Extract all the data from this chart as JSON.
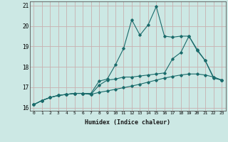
{
  "xlabel": "Humidex (Indice chaleur)",
  "bg_color": "#cce8e4",
  "grid_color": "#c8b0b0",
  "line_color": "#1a6b6b",
  "xlim": [
    -0.5,
    23.5
  ],
  "ylim": [
    15.85,
    21.2
  ],
  "yticks": [
    16,
    17,
    18,
    19,
    20,
    21
  ],
  "xticks": [
    0,
    1,
    2,
    3,
    4,
    5,
    6,
    7,
    8,
    9,
    10,
    11,
    12,
    13,
    14,
    15,
    16,
    17,
    18,
    19,
    20,
    21,
    22,
    23
  ],
  "series": [
    [
      16.15,
      16.35,
      16.5,
      16.6,
      16.65,
      16.7,
      16.7,
      16.7,
      17.3,
      17.4,
      18.1,
      18.9,
      20.3,
      19.55,
      20.05,
      20.95,
      19.5,
      19.45,
      19.5,
      19.5,
      18.8,
      18.3,
      17.5,
      17.35
    ],
    [
      16.15,
      16.35,
      16.5,
      16.6,
      16.65,
      16.7,
      16.7,
      16.65,
      17.1,
      17.35,
      17.4,
      17.5,
      17.5,
      17.55,
      17.6,
      17.65,
      17.7,
      18.4,
      18.7,
      19.5,
      18.85,
      18.3,
      17.45,
      17.35
    ],
    [
      16.15,
      16.35,
      16.5,
      16.6,
      16.65,
      16.7,
      16.7,
      16.65,
      16.75,
      16.82,
      16.9,
      16.98,
      17.06,
      17.15,
      17.25,
      17.35,
      17.45,
      17.53,
      17.6,
      17.65,
      17.65,
      17.6,
      17.5,
      17.35
    ]
  ]
}
